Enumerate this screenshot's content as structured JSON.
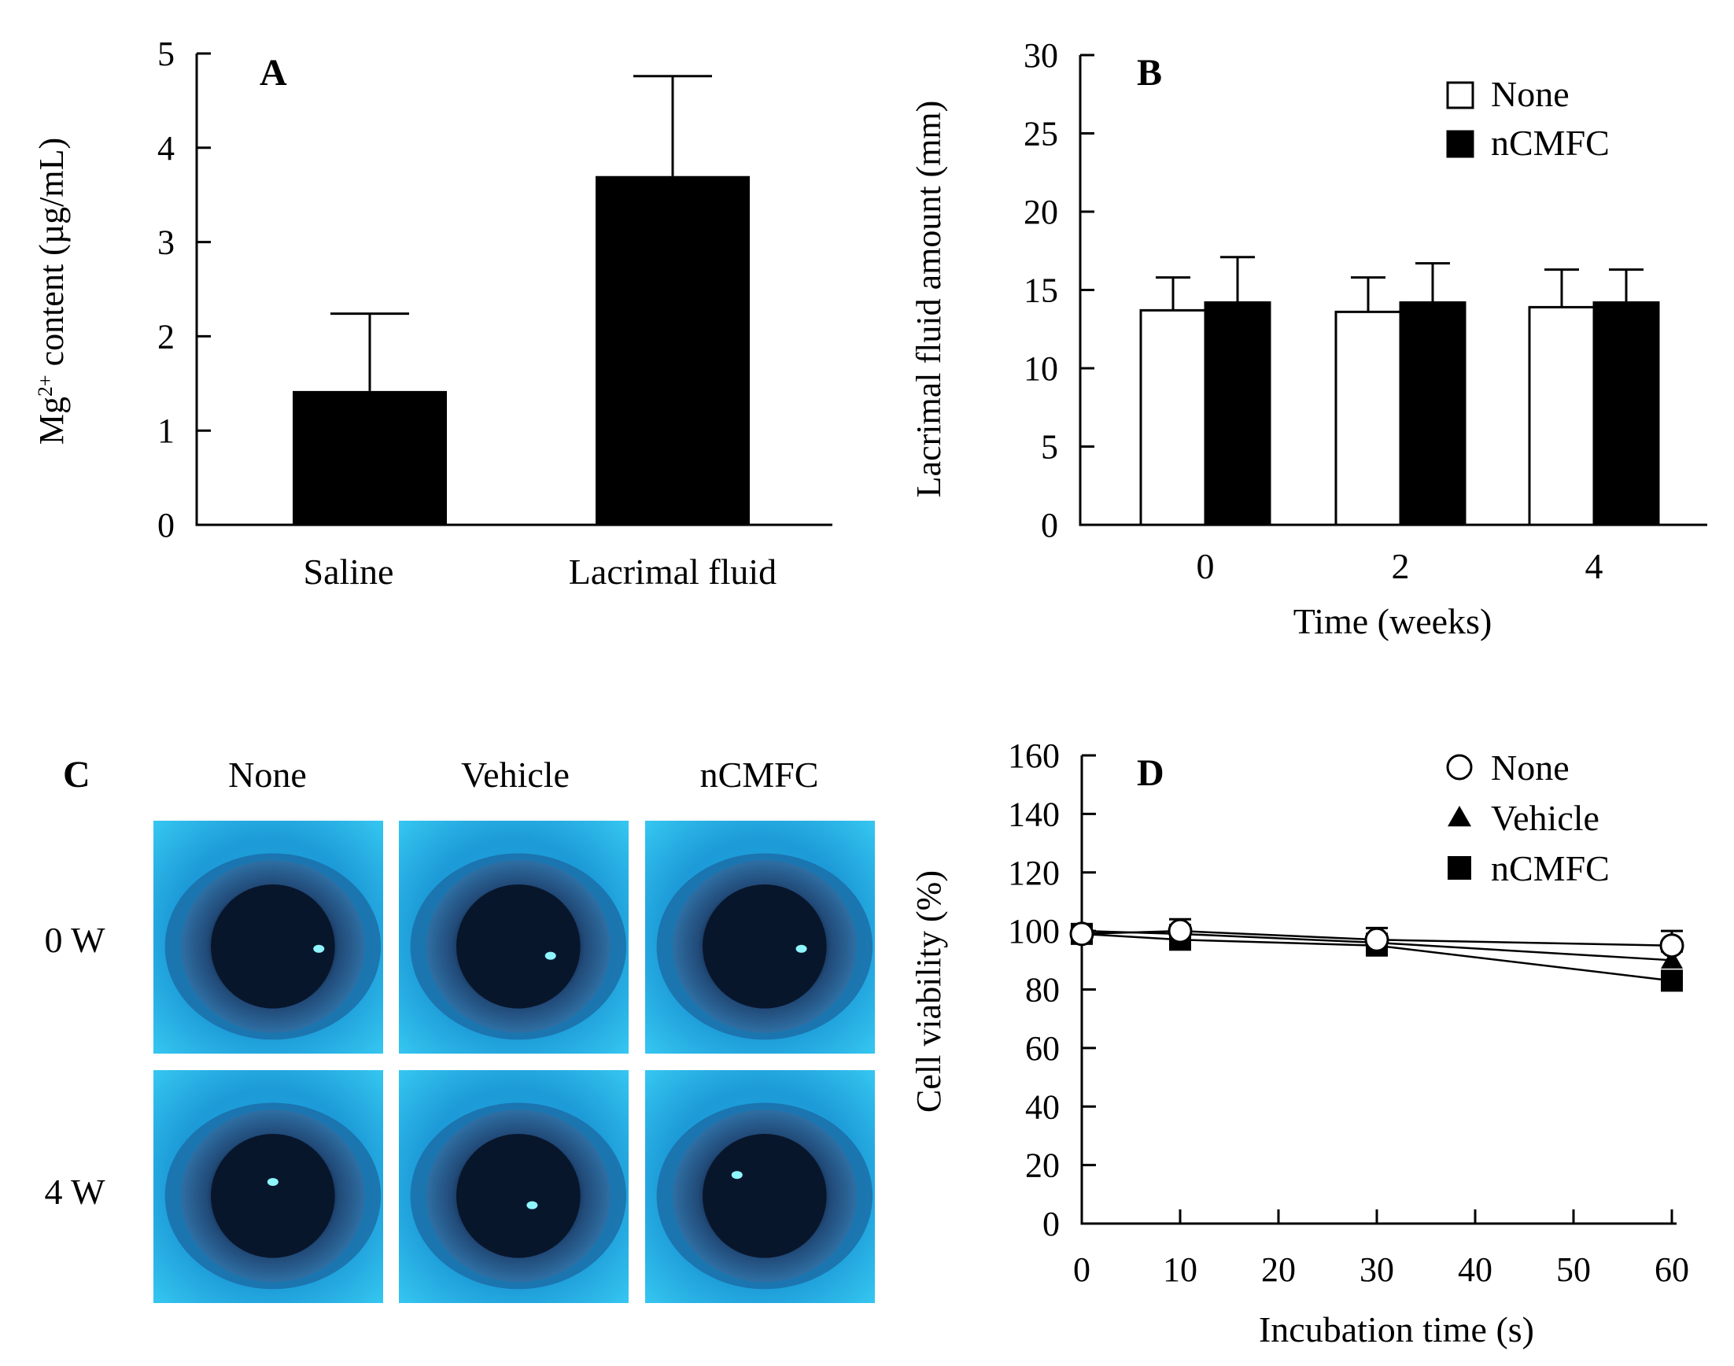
{
  "colors": {
    "ink": "#000000",
    "paper": "#ffffff",
    "eye_bg": "#1fa6e0",
    "iris": "#2b5f8c",
    "pupil": "#071426",
    "glint": "#7ff3ff"
  },
  "chart_data": [
    {
      "panel": "A",
      "type": "bar",
      "ylabel_prefix": "Mg",
      "ylabel_sup": "2+",
      "ylabel_suffix": " content (µg/mL)",
      "xlabel": "",
      "categories": [
        "Saline",
        "Lacrimal  fluid"
      ],
      "values": [
        1.42,
        3.7
      ],
      "errors": [
        0.82,
        1.06
      ],
      "ylim": [
        0,
        5
      ],
      "yticks": [
        "0",
        "1",
        "2",
        "3",
        "4",
        "5"
      ]
    },
    {
      "panel": "B",
      "type": "bar",
      "xlabel": "Time  (weeks)",
      "ylabel": "Lacrimal  fluid  amount  (mm)",
      "categories": [
        "0",
        "2",
        "4"
      ],
      "series": [
        {
          "name": "None",
          "values": [
            13.7,
            13.6,
            13.9
          ],
          "errors": [
            2.1,
            2.2,
            2.4
          ],
          "fill": "white"
        },
        {
          "name": "nCMFC",
          "values": [
            14.2,
            14.2,
            14.2
          ],
          "errors": [
            2.9,
            2.5,
            2.1
          ],
          "fill": "black"
        }
      ],
      "ylim": [
        0,
        30
      ],
      "yticks": [
        "0",
        "5",
        "10",
        "15",
        "20",
        "25",
        "30"
      ],
      "legend": "top-right"
    },
    {
      "panel": "D",
      "type": "line",
      "xlabel": "Incubation time (s)",
      "ylabel": "Cell viability  (%)",
      "x": [
        0,
        10,
        30,
        60
      ],
      "series": [
        {
          "name": "None",
          "marker": "circle-open",
          "values": [
            99,
            100,
            97,
            95
          ],
          "errors": [
            3,
            4,
            4,
            5
          ]
        },
        {
          "name": "Vehicle",
          "marker": "triangle",
          "values": [
            100,
            99,
            96,
            90
          ],
          "errors": [
            2,
            3,
            3,
            3
          ]
        },
        {
          "name": "nCMFC",
          "marker": "square",
          "values": [
            99,
            97,
            95,
            83
          ],
          "errors": [
            2,
            2,
            2,
            2
          ]
        }
      ],
      "xlim": [
        0,
        60
      ],
      "xticks": [
        "0",
        "10",
        "20",
        "30",
        "40",
        "50",
        "60"
      ],
      "ylim": [
        0,
        160
      ],
      "yticks": [
        "0",
        "20",
        "40",
        "60",
        "80",
        "100",
        "120",
        "140",
        "160"
      ],
      "legend": "top-right"
    }
  ],
  "panel_c": {
    "label": "C",
    "columns": [
      "None",
      "Vehicle",
      "nCMFC"
    ],
    "rows": [
      "0 W",
      "4 W"
    ]
  }
}
